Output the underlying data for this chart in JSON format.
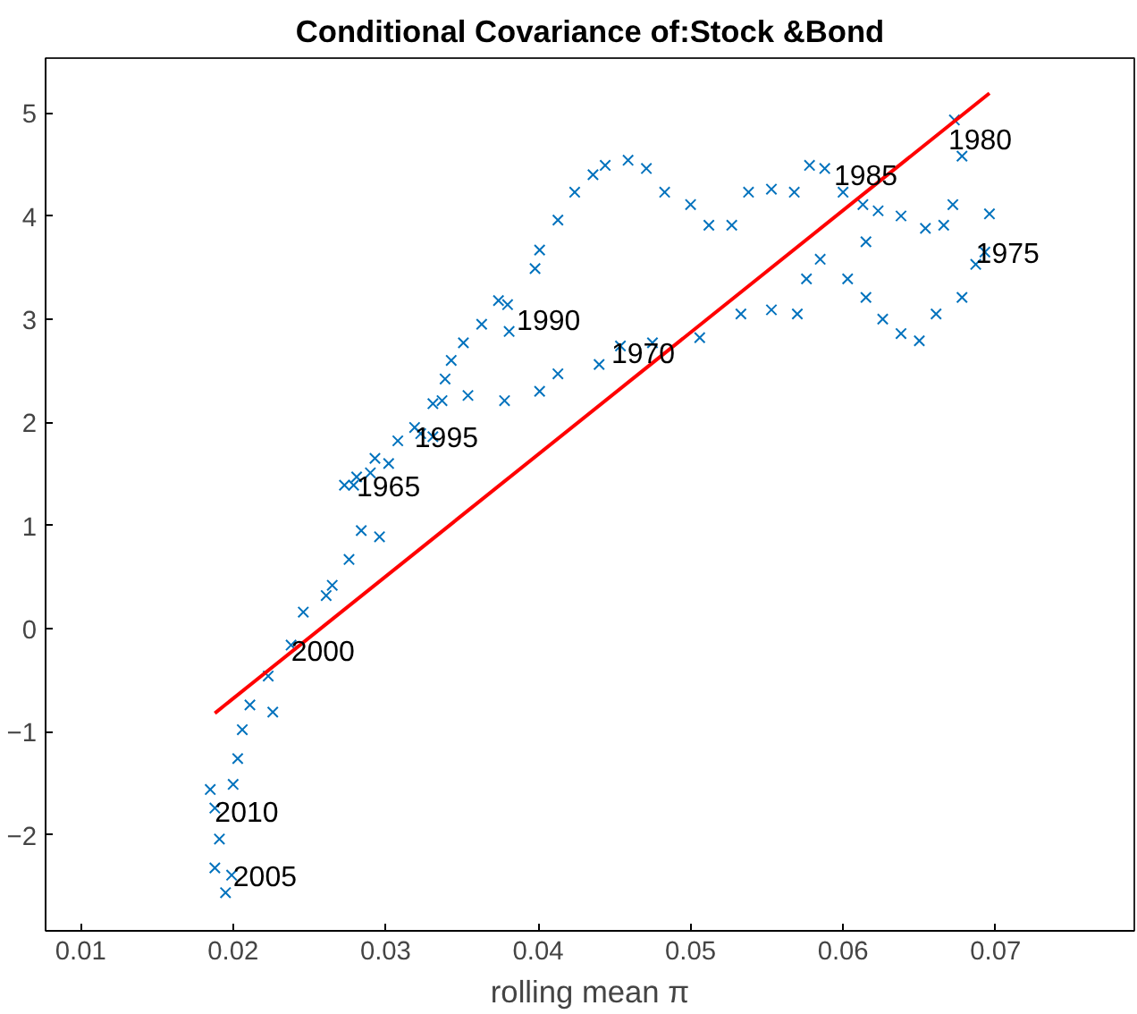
{
  "chart_data": {
    "type": "scatter",
    "title": "Conditional Covariance of:Stock &Bond",
    "xlabel": "rolling mean π",
    "marker": "cross",
    "grid": false,
    "xlim": [
      0.0077,
      0.0791
    ],
    "ylim": [
      -2.93,
      5.53
    ],
    "xticks": [
      0.01,
      0.02,
      0.03,
      0.04,
      0.05,
      0.06,
      0.07
    ],
    "yticks": [
      -2,
      -1,
      0,
      1,
      2,
      3,
      4,
      5
    ],
    "series": [
      {
        "color": "#0072bd",
        "x": [
          0.0279,
          0.029,
          0.0302,
          0.0319,
          0.0337,
          0.0354,
          0.0378,
          0.0401,
          0.0413,
          0.044,
          0.0454,
          0.0475,
          0.0506,
          0.0533,
          0.0553,
          0.057,
          0.0576,
          0.0585,
          0.0603,
          0.0615,
          0.0626,
          0.0638,
          0.065,
          0.0661,
          0.0678,
          0.0687,
          0.0693,
          0.0696,
          0.0673,
          0.0678,
          0.0672,
          0.0666,
          0.0654,
          0.0638,
          0.0623,
          0.0613,
          0.0615,
          0.06,
          0.0588,
          0.0578,
          0.0568,
          0.0553,
          0.0538,
          0.0527,
          0.0512,
          0.05,
          0.0483,
          0.0471,
          0.0459,
          0.0444,
          0.0436,
          0.0424,
          0.0413,
          0.0401,
          0.0398,
          0.038,
          0.0381,
          0.0374,
          0.0363,
          0.0351,
          0.0343,
          0.0339,
          0.0331,
          0.0323,
          0.0308,
          0.0293,
          0.0281,
          0.0284,
          0.0296,
          0.0276,
          0.0265,
          0.0261,
          0.0246,
          0.0238,
          0.0223,
          0.0226,
          0.0211,
          0.0206,
          0.0203,
          0.02,
          0.0188,
          0.0191,
          0.0188,
          0.0195,
          0.0199,
          0.0185,
          0.0273,
          0.0331
        ],
        "values": [
          1.39,
          1.51,
          1.6,
          1.95,
          2.21,
          2.26,
          2.21,
          2.3,
          2.47,
          2.56,
          2.74,
          2.77,
          2.82,
          3.05,
          3.09,
          3.05,
          3.39,
          3.58,
          3.39,
          3.21,
          3.0,
          2.86,
          2.79,
          3.05,
          3.21,
          3.53,
          3.65,
          4.02,
          4.93,
          4.58,
          4.11,
          3.91,
          3.88,
          4.0,
          4.05,
          4.11,
          3.75,
          4.23,
          4.46,
          4.49,
          4.23,
          4.26,
          4.23,
          3.91,
          3.91,
          4.11,
          4.23,
          4.46,
          4.54,
          4.49,
          4.4,
          4.23,
          3.96,
          3.67,
          3.49,
          3.14,
          2.88,
          3.18,
          2.95,
          2.77,
          2.6,
          2.42,
          2.18,
          1.89,
          1.82,
          1.65,
          1.47,
          0.95,
          0.89,
          0.67,
          0.42,
          0.32,
          0.16,
          -0.16,
          -0.46,
          -0.81,
          -0.74,
          -0.98,
          -1.26,
          -1.51,
          -1.74,
          -2.04,
          -2.32,
          -2.56,
          -2.39,
          -1.56,
          1.39,
          1.86
        ]
      },
      {
        "type": "line",
        "marker": "none",
        "color": "#ff0000",
        "x": [
          0.0188,
          0.0696
        ],
        "values": [
          -0.82,
          5.19
        ]
      }
    ],
    "annotations": [
      {
        "text": "1965",
        "x": 0.0281,
        "y": 1.39
      },
      {
        "text": "1970",
        "x": 0.0448,
        "y": 2.68
      },
      {
        "text": "1975",
        "x": 0.0687,
        "y": 3.65
      },
      {
        "text": "1980",
        "x": 0.0669,
        "y": 4.75
      },
      {
        "text": "1985",
        "x": 0.0594,
        "y": 4.4
      },
      {
        "text": "1990",
        "x": 0.0386,
        "y": 3.0
      },
      {
        "text": "1995",
        "x": 0.0319,
        "y": 1.86
      },
      {
        "text": "2000",
        "x": 0.0238,
        "y": -0.21
      },
      {
        "text": "2005",
        "x": 0.02,
        "y": -2.39
      },
      {
        "text": "2010",
        "x": 0.0188,
        "y": -1.77
      }
    ]
  }
}
